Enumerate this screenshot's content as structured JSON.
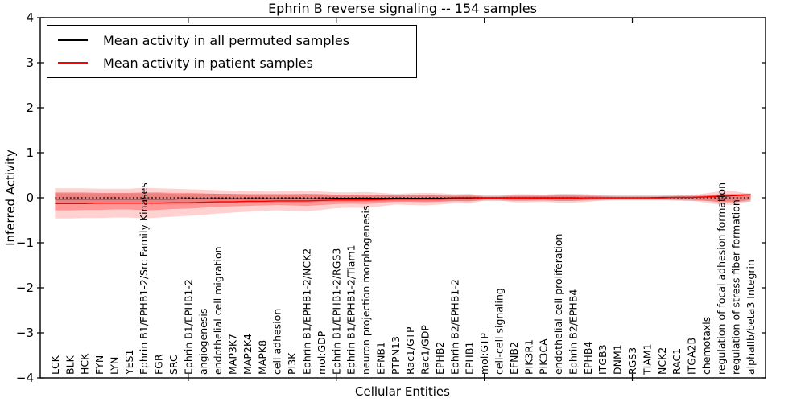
{
  "figure": {
    "title": "Ephrin B reverse signaling -- 154 samples",
    "xlabel": "Cellular Entities",
    "ylabel": "Inferred Activity"
  },
  "legend": {
    "items": [
      {
        "label": "Mean activity in all permuted samples",
        "color": "#000000"
      },
      {
        "label": "Mean activity in patient samples",
        "color": "#ff0000"
      }
    ]
  },
  "chart_data": {
    "type": "line",
    "title": "Ephrin B reverse signaling -- 154 samples",
    "xlabel": "Cellular Entities",
    "ylabel": "Inferred Activity",
    "ylim": [
      -4,
      4
    ],
    "xlim": [
      0,
      49
    ],
    "yticks": [
      4,
      3,
      2,
      1,
      0,
      -1,
      -2,
      -3,
      -4
    ],
    "ytick_labels": [
      "4",
      "3",
      "2",
      "1",
      "0",
      "−1",
      "−2",
      "−3",
      "−4"
    ],
    "xticks": [
      10,
      20,
      30,
      40
    ],
    "grid": false,
    "legend_position": "upper left",
    "categories": [
      "LCK",
      "BLK",
      "HCK",
      "FYN",
      "LYN",
      "YES1",
      "Ephrin B1/EPHB1-2/Src Family Kinases",
      "FGR",
      "SRC",
      "Ephrin B1/EPHB1-2",
      "angiogenesis",
      "endothelial cell migration",
      "MAP3K7",
      "MAP2K4",
      "MAPK8",
      "cell adhesion",
      "PI3K",
      "Ephrin B1/EPHB1-2/NCK2",
      "mol:GDP",
      "Ephrin B1/EPHB1-2/RGS3",
      "Ephrin B1/EPHB1-2/Tiam1",
      "neuron projection morphogenesis",
      "EFNB1",
      "PTPN13",
      "Rac1/GTP",
      "Rac1/GDP",
      "EPHB2",
      "Ephrin B2/EPHB1-2",
      "EPHB1",
      "mol:GTP",
      "cell-cell signaling",
      "EFNB2",
      "PIK3R1",
      "PIK3CA",
      "endothelial cell proliferation",
      "Ephrin B2/EPHB4",
      "EPHB4",
      "ITGB3",
      "DNM1",
      "RGS3",
      "TIAM1",
      "NCK2",
      "RAC1",
      "ITGA2B",
      "chemotaxis",
      "regulation of focal adhesion formation",
      "regulation of stress fiber formation",
      "alphaIIb/beta3 Integrin"
    ],
    "zero_line": {
      "y": 0,
      "style": "dotted",
      "color": "#000000"
    },
    "series": [
      {
        "name": "Mean activity in all permuted samples",
        "color": "#000000",
        "width": 1.1,
        "values": [
          -0.03,
          -0.03,
          -0.03,
          -0.03,
          -0.03,
          -0.03,
          -0.03,
          -0.03,
          -0.03,
          -0.02,
          -0.02,
          -0.02,
          -0.02,
          -0.02,
          -0.02,
          -0.02,
          -0.02,
          -0.02,
          -0.02,
          -0.01,
          -0.01,
          -0.01,
          -0.01,
          -0.01,
          -0.01,
          -0.01,
          -0.01,
          0,
          0,
          0,
          0,
          0,
          0,
          0,
          0,
          0,
          0,
          0,
          0,
          0,
          0,
          0.01,
          0.01,
          0.01,
          0.02,
          0.03,
          0.05,
          0.07
        ]
      },
      {
        "name": "Mean activity in patient samples",
        "color": "#ff0000",
        "width": 1.4,
        "values": [
          -0.13,
          -0.13,
          -0.13,
          -0.12,
          -0.12,
          -0.12,
          -0.12,
          -0.12,
          -0.11,
          -0.11,
          -0.1,
          -0.09,
          -0.09,
          -0.08,
          -0.08,
          -0.07,
          -0.07,
          -0.07,
          -0.06,
          -0.05,
          -0.05,
          -0.05,
          -0.04,
          -0.03,
          -0.03,
          -0.03,
          -0.03,
          -0.02,
          -0.02,
          -0.01,
          -0.01,
          -0.01,
          -0.01,
          -0.01,
          -0.01,
          -0.01,
          0,
          0,
          0,
          0,
          0,
          0,
          0.01,
          0.01,
          0.02,
          0.04,
          0.06,
          0.07
        ]
      }
    ],
    "bands": [
      {
        "name": "permuted-samples-std-band",
        "color": "#9e9e9e",
        "opacity": 0.35,
        "upper": [
          0.1,
          0.1,
          0.1,
          0.1,
          0.1,
          0.1,
          0.1,
          0.1,
          0.09,
          0.09,
          0.09,
          0.09,
          0.08,
          0.08,
          0.08,
          0.08,
          0.08,
          0.08,
          0.08,
          0.07,
          0.07,
          0.07,
          0.07,
          0.07,
          0.07,
          0.07,
          0.07,
          0.07,
          0.07,
          0.07,
          0.07,
          0.07,
          0.07,
          0.06,
          0.06,
          0.06,
          0.06,
          0.06,
          0.06,
          0.06,
          0.06,
          0.06,
          0.06,
          0.07,
          0.07,
          0.08,
          0.09,
          0.1
        ],
        "lower": [
          -0.13,
          -0.13,
          -0.13,
          -0.13,
          -0.13,
          -0.12,
          -0.12,
          -0.12,
          -0.12,
          -0.12,
          -0.11,
          -0.11,
          -0.11,
          -0.1,
          -0.1,
          -0.1,
          -0.1,
          -0.1,
          -0.09,
          -0.09,
          -0.09,
          -0.09,
          -0.08,
          -0.08,
          -0.08,
          -0.08,
          -0.08,
          -0.08,
          -0.07,
          -0.07,
          -0.07,
          -0.07,
          -0.07,
          -0.07,
          -0.07,
          -0.07,
          -0.06,
          -0.06,
          -0.06,
          -0.06,
          -0.06,
          -0.06,
          -0.06,
          -0.07,
          -0.07,
          -0.08,
          -0.08,
          -0.09
        ]
      },
      {
        "name": "patient-samples-outer-band",
        "color": "#ff0000",
        "opacity": 0.18,
        "upper": [
          0.21,
          0.21,
          0.21,
          0.2,
          0.2,
          0.2,
          0.22,
          0.21,
          0.2,
          0.19,
          0.18,
          0.17,
          0.16,
          0.15,
          0.14,
          0.14,
          0.15,
          0.16,
          0.14,
          0.12,
          0.12,
          0.13,
          0.11,
          0.09,
          0.1,
          0.11,
          0.1,
          0.08,
          0.09,
          0.04,
          0.04,
          0.08,
          0.08,
          0.07,
          0.09,
          0.09,
          0.08,
          0.05,
          0.04,
          0.04,
          0.04,
          0.04,
          0.05,
          0.06,
          0.1,
          0.15,
          0.14,
          0.08
        ],
        "lower": [
          -0.46,
          -0.46,
          -0.45,
          -0.45,
          -0.44,
          -0.44,
          -0.46,
          -0.44,
          -0.42,
          -0.4,
          -0.38,
          -0.35,
          -0.33,
          -0.31,
          -0.29,
          -0.28,
          -0.29,
          -0.3,
          -0.27,
          -0.23,
          -0.22,
          -0.23,
          -0.19,
          -0.15,
          -0.16,
          -0.17,
          -0.15,
          -0.12,
          -0.13,
          -0.06,
          -0.06,
          -0.1,
          -0.1,
          -0.09,
          -0.11,
          -0.11,
          -0.09,
          -0.06,
          -0.05,
          -0.05,
          -0.05,
          -0.05,
          -0.06,
          -0.07,
          -0.11,
          -0.16,
          -0.15,
          -0.07
        ]
      },
      {
        "name": "patient-samples-inner-band",
        "color": "#ff0000",
        "opacity": 0.28,
        "upper": [
          0.12,
          0.12,
          0.12,
          0.11,
          0.11,
          0.11,
          0.12,
          0.12,
          0.11,
          0.11,
          0.1,
          0.09,
          0.09,
          0.08,
          0.08,
          0.08,
          0.08,
          0.09,
          0.08,
          0.07,
          0.07,
          0.07,
          0.06,
          0.05,
          0.05,
          0.06,
          0.05,
          0.04,
          0.05,
          0.02,
          0.02,
          0.04,
          0.04,
          0.04,
          0.05,
          0.05,
          0.04,
          0.03,
          0.02,
          0.02,
          0.02,
          0.02,
          0.03,
          0.03,
          0.05,
          0.08,
          0.08,
          0.05
        ],
        "lower": [
          -0.28,
          -0.28,
          -0.27,
          -0.27,
          -0.26,
          -0.26,
          -0.28,
          -0.27,
          -0.25,
          -0.24,
          -0.22,
          -0.2,
          -0.19,
          -0.18,
          -0.17,
          -0.16,
          -0.17,
          -0.18,
          -0.16,
          -0.14,
          -0.13,
          -0.14,
          -0.11,
          -0.09,
          -0.09,
          -0.1,
          -0.09,
          -0.07,
          -0.08,
          -0.04,
          -0.04,
          -0.06,
          -0.06,
          -0.05,
          -0.07,
          -0.07,
          -0.05,
          -0.04,
          -0.03,
          -0.03,
          -0.03,
          -0.03,
          -0.04,
          -0.04,
          -0.07,
          -0.1,
          -0.1,
          -0.04
        ]
      }
    ]
  }
}
